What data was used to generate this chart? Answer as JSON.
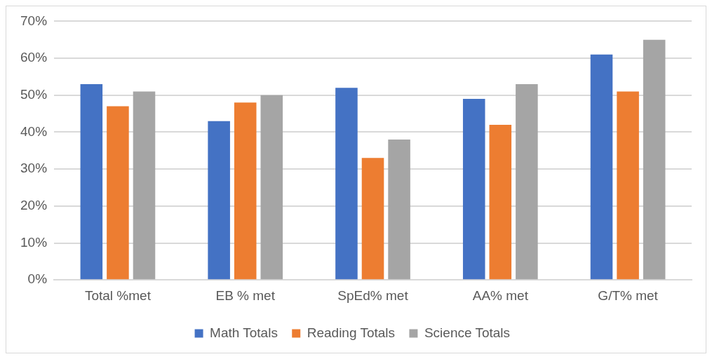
{
  "chart_data": {
    "type": "bar",
    "categories": [
      "Total %met",
      "EB % met",
      "SpEd% met",
      "AA% met",
      "G/T% met"
    ],
    "series": [
      {
        "name": "Math Totals",
        "color": "#4472c4",
        "values": [
          53,
          43,
          52,
          49,
          61
        ]
      },
      {
        "name": "Reading Totals",
        "color": "#ed7d31",
        "values": [
          47,
          48,
          33,
          42,
          51
        ]
      },
      {
        "name": "Science Totals",
        "color": "#a5a5a5",
        "values": [
          51,
          50,
          38,
          53,
          65
        ]
      }
    ],
    "ylim": [
      0,
      70
    ],
    "yticks": [
      {
        "value": 0,
        "label": "0%"
      },
      {
        "value": 10,
        "label": "10%"
      },
      {
        "value": 20,
        "label": "20%"
      },
      {
        "value": 30,
        "label": "30%"
      },
      {
        "value": 40,
        "label": "40%"
      },
      {
        "value": 50,
        "label": "50%"
      },
      {
        "value": 60,
        "label": "60%"
      },
      {
        "value": 70,
        "label": "70%"
      }
    ],
    "grid": "y",
    "legend": "bottom"
  }
}
